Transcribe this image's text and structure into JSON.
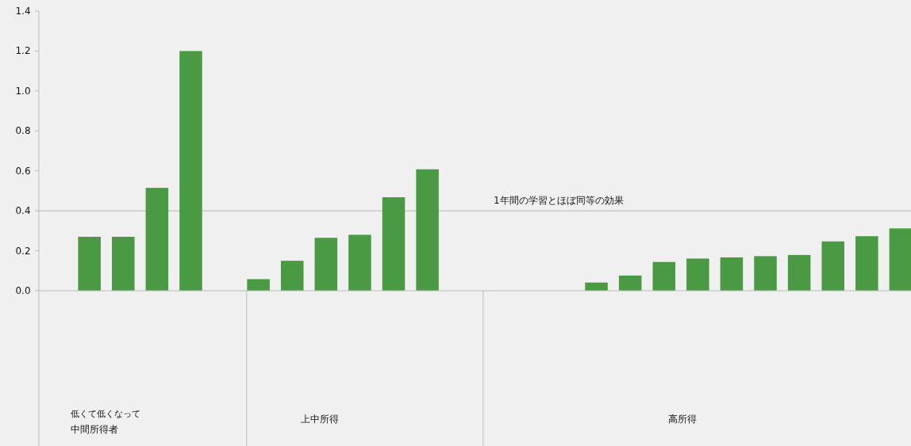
{
  "chart_data": {
    "type": "bar",
    "categories": [
      null,
      null,
      null,
      null,
      null,
      null,
      null,
      null,
      null,
      null,
      null,
      null,
      null,
      null,
      null,
      null,
      null,
      null,
      null,
      null,
      null,
      null,
      null,
      null,
      null,
      null
    ],
    "values": [
      null,
      0.27,
      0.27,
      0.515,
      1.2,
      null,
      0.058,
      0.15,
      0.265,
      0.28,
      0.468,
      0.608,
      null,
      null,
      null,
      null,
      0.041,
      0.076,
      0.144,
      0.161,
      0.167,
      0.173,
      0.179,
      0.247,
      0.273,
      0.312
    ],
    "color": "#4a9a44",
    "ylim": [
      0,
      1.4
    ],
    "yticks": [
      {
        "value": 0,
        "label": "0.0"
      },
      0.2,
      0.4,
      0.6,
      0.8,
      {
        "value": 1,
        "label": "1.0"
      },
      1.2,
      1.4
    ],
    "grid": false,
    "ref_lines": [
      {
        "axis": "y",
        "value": 0.4,
        "label": "1年間の学習とほぼ同等の効果",
        "color": "#c8c8c8"
      }
    ],
    "annotations": [
      "低くて低くなって中間所得者",
      "上中所得",
      "高所得"
    ]
  }
}
